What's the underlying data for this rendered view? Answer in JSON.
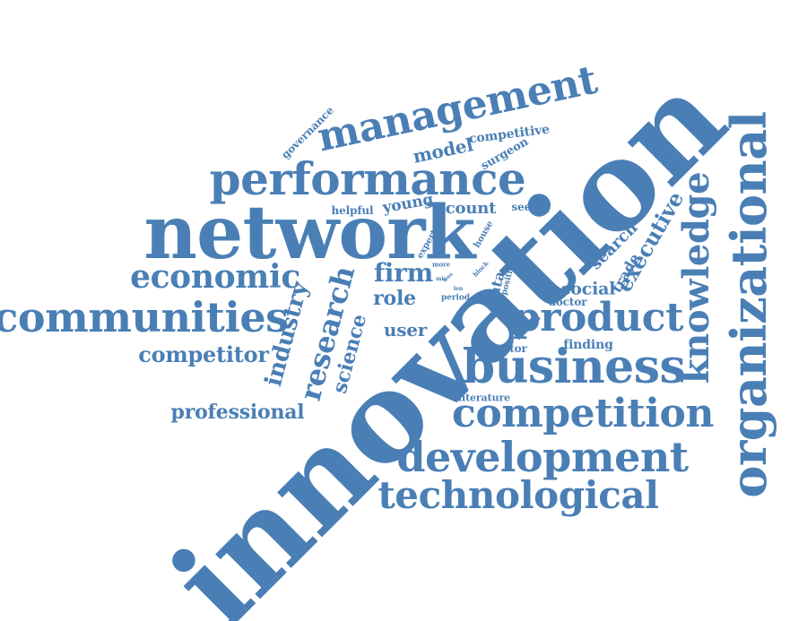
{
  "accent_color": "#4a7fb5",
  "words": [
    {
      "id": "innovation",
      "text": "innovation"
    },
    {
      "id": "network",
      "text": "network"
    },
    {
      "id": "performance",
      "text": "performance"
    },
    {
      "id": "management",
      "text": "management"
    },
    {
      "id": "communities",
      "text": "communities"
    },
    {
      "id": "business",
      "text": "business"
    },
    {
      "id": "competition",
      "text": "competition"
    },
    {
      "id": "development",
      "text": "development"
    },
    {
      "id": "technological",
      "text": "technological"
    },
    {
      "id": "organizational",
      "text": "organizational"
    },
    {
      "id": "knowledge",
      "text": "knowledge"
    },
    {
      "id": "product",
      "text": "product"
    },
    {
      "id": "economic",
      "text": "economic"
    },
    {
      "id": "research",
      "text": "research"
    },
    {
      "id": "industry",
      "text": "industry"
    },
    {
      "id": "science",
      "text": "science"
    },
    {
      "id": "competitor",
      "text": "competitor"
    },
    {
      "id": "professional",
      "text": "professional"
    },
    {
      "id": "executive",
      "text": "executive"
    },
    {
      "id": "firm",
      "text": "firm"
    },
    {
      "id": "role",
      "text": "role"
    },
    {
      "id": "user",
      "text": "user"
    },
    {
      "id": "social",
      "text": "social"
    },
    {
      "id": "search",
      "text": "search"
    },
    {
      "id": "trade",
      "text": "trade"
    },
    {
      "id": "model",
      "text": "model"
    },
    {
      "id": "competitive",
      "text": "competitive"
    },
    {
      "id": "surgeon",
      "text": "surgeon"
    },
    {
      "id": "governance",
      "text": "governance"
    },
    {
      "id": "young",
      "text": "young"
    },
    {
      "id": "count",
      "text": "count"
    },
    {
      "id": "helpful",
      "text": "helpful"
    },
    {
      "id": "seeing",
      "text": "seeing"
    },
    {
      "id": "data",
      "text": "data"
    },
    {
      "id": "doctor",
      "text": "doctor"
    },
    {
      "id": "finding",
      "text": "finding"
    },
    {
      "id": "inventor",
      "text": "inventor"
    },
    {
      "id": "literature",
      "text": "literature"
    },
    {
      "id": "expert",
      "text": "expert"
    },
    {
      "id": "house",
      "text": "house"
    },
    {
      "id": "position",
      "text": "position"
    },
    {
      "id": "period",
      "text": "period"
    },
    {
      "id": "more",
      "text": "more"
    },
    {
      "id": "block",
      "text": "block"
    },
    {
      "id": "mis",
      "text": "mis"
    },
    {
      "id": "len",
      "text": "len"
    },
    {
      "id": "less",
      "text": "less"
    }
  ]
}
